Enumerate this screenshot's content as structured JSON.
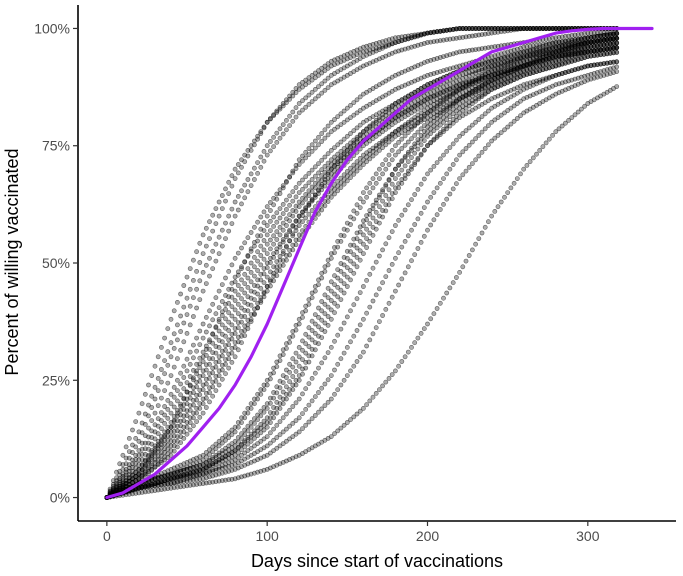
{
  "chart_data": {
    "type": "scatter",
    "title": "",
    "xlabel": "Days since start of vaccinations",
    "ylabel": "Percent of willing vaccinated",
    "xlim": [
      -18,
      355
    ],
    "ylim": [
      -5,
      105
    ],
    "x_ticks": [
      0,
      100,
      200,
      300
    ],
    "x_tick_labels": [
      "0",
      "100",
      "200",
      "300"
    ],
    "y_ticks": [
      0,
      25,
      50,
      75,
      100
    ],
    "y_tick_labels": [
      "0%",
      "25%",
      "50%",
      "75%",
      "100%"
    ],
    "grid": false,
    "legend": "none",
    "colors": {
      "points": "#000000",
      "fit": "#a020f0",
      "axis": "#000000"
    },
    "series": [
      {
        "x": [
          0,
          20,
          40,
          60,
          80,
          100,
          120,
          140,
          160,
          180,
          200,
          220,
          240,
          260,
          280,
          300,
          320
        ],
        "y": [
          0,
          5,
          14,
          26,
          38,
          50,
          60,
          68,
          75,
          80,
          84,
          87,
          90,
          92,
          94,
          96,
          97
        ]
      },
      {
        "x": [
          0,
          20,
          40,
          60,
          80,
          100,
          120,
          140,
          160,
          180,
          200,
          220,
          240,
          260,
          280,
          300,
          320
        ],
        "y": [
          0,
          6,
          16,
          29,
          42,
          54,
          63,
          71,
          77,
          82,
          86,
          89,
          92,
          94,
          96,
          97,
          98
        ]
      },
      {
        "x": [
          0,
          20,
          40,
          60,
          80,
          100,
          120,
          140,
          160,
          180,
          200,
          220,
          240,
          260,
          280,
          300,
          320
        ],
        "y": [
          0,
          3,
          10,
          20,
          32,
          44,
          55,
          64,
          71,
          77,
          81,
          85,
          88,
          91,
          93,
          95,
          96
        ]
      },
      {
        "x": [
          0,
          20,
          40,
          60,
          80,
          100,
          120,
          140,
          160,
          180,
          200,
          220,
          240,
          260,
          280,
          300,
          320
        ],
        "y": [
          0,
          8,
          20,
          34,
          47,
          58,
          67,
          74,
          80,
          84,
          88,
          91,
          93,
          95,
          97,
          98,
          99
        ]
      },
      {
        "x": [
          0,
          20,
          40,
          60,
          80,
          100,
          120,
          140,
          160,
          180,
          200,
          220,
          240,
          260,
          280,
          300,
          320
        ],
        "y": [
          0,
          4,
          12,
          23,
          35,
          47,
          58,
          66,
          73,
          78,
          82,
          86,
          89,
          92,
          94,
          95,
          96
        ]
      },
      {
        "x": [
          0,
          20,
          40,
          60,
          80,
          100,
          120,
          140,
          160,
          180,
          200,
          220,
          240,
          260,
          280,
          300,
          320
        ],
        "y": [
          0,
          7,
          18,
          31,
          44,
          56,
          65,
          72,
          78,
          83,
          87,
          90,
          92,
          94,
          95,
          96,
          97
        ]
      },
      {
        "x": [
          0,
          20,
          40,
          60,
          80,
          100,
          120,
          140,
          160,
          180,
          200,
          220,
          240,
          260,
          280,
          300,
          320
        ],
        "y": [
          0,
          5,
          13,
          24,
          36,
          49,
          60,
          69,
          76,
          81,
          85,
          88,
          91,
          93,
          95,
          97,
          98
        ]
      },
      {
        "x": [
          0,
          20,
          40,
          60,
          80,
          100,
          120,
          140,
          160,
          180,
          200,
          220,
          240,
          260,
          280,
          300,
          320
        ],
        "y": [
          0,
          9,
          22,
          37,
          51,
          62,
          71,
          78,
          83,
          87,
          90,
          92,
          94,
          96,
          97,
          98,
          99
        ]
      },
      {
        "x": [
          0,
          20,
          40,
          60,
          80,
          100,
          120,
          140,
          160,
          180,
          200,
          220,
          240,
          260,
          280,
          300,
          320
        ],
        "y": [
          0,
          6,
          15,
          27,
          40,
          52,
          62,
          70,
          76,
          81,
          85,
          88,
          90,
          92,
          94,
          95,
          96
        ]
      },
      {
        "x": [
          0,
          20,
          40,
          60,
          80,
          100,
          120,
          140,
          160,
          180,
          200,
          220,
          240,
          260,
          280,
          300,
          320
        ],
        "y": [
          0,
          4,
          11,
          21,
          33,
          45,
          56,
          65,
          72,
          78,
          83,
          87,
          90,
          93,
          95,
          97,
          98
        ]
      },
      {
        "x": [
          0,
          20,
          40,
          60,
          80,
          100,
          120,
          140,
          160,
          180,
          200,
          220,
          240,
          260,
          280,
          300,
          320
        ],
        "y": [
          0,
          3,
          5,
          7,
          12,
          20,
          32,
          46,
          59,
          70,
          78,
          84,
          88,
          91,
          93,
          95,
          96
        ]
      },
      {
        "x": [
          0,
          20,
          40,
          60,
          80,
          100,
          120,
          140,
          160,
          180,
          200,
          220,
          240,
          260,
          280,
          300,
          320
        ],
        "y": [
          0,
          2,
          4,
          6,
          10,
          17,
          28,
          42,
          56,
          68,
          77,
          83,
          87,
          90,
          92,
          94,
          95
        ]
      },
      {
        "x": [
          0,
          20,
          40,
          60,
          80,
          100,
          120,
          140,
          160,
          180,
          200,
          220,
          240,
          260,
          280,
          300,
          320
        ],
        "y": [
          0,
          3,
          5,
          8,
          14,
          24,
          37,
          51,
          63,
          73,
          80,
          85,
          89,
          92,
          94,
          96,
          97
        ]
      },
      {
        "x": [
          0,
          20,
          40,
          60,
          80,
          100,
          120,
          140,
          160,
          180,
          200,
          220,
          240,
          260,
          280,
          300,
          320
        ],
        "y": [
          0,
          2,
          4,
          6,
          9,
          15,
          25,
          38,
          52,
          65,
          75,
          82,
          87,
          90,
          92,
          94,
          95
        ]
      },
      {
        "x": [
          0,
          20,
          40,
          60,
          80,
          100,
          120,
          140,
          160,
          180,
          200,
          220,
          240,
          260,
          280,
          300,
          320
        ],
        "y": [
          0,
          3,
          5,
          7,
          11,
          19,
          30,
          44,
          58,
          70,
          79,
          85,
          89,
          92,
          95,
          97,
          98
        ]
      },
      {
        "x": [
          0,
          20,
          40,
          60,
          80,
          100,
          120,
          140,
          160,
          180,
          200,
          220,
          240,
          260,
          280,
          300,
          320
        ],
        "y": [
          0,
          2,
          4,
          6,
          10,
          16,
          26,
          40,
          54,
          66,
          75,
          81,
          85,
          88,
          90,
          92,
          93
        ]
      },
      {
        "x": [
          0,
          20,
          40,
          60,
          80,
          100,
          120,
          140,
          160,
          180,
          200,
          220,
          240,
          260,
          280,
          300,
          320
        ],
        "y": [
          0,
          2,
          4,
          5,
          8,
          13,
          21,
          32,
          45,
          58,
          69,
          77,
          83,
          87,
          90,
          92,
          93
        ]
      },
      {
        "x": [
          0,
          20,
          40,
          60,
          80,
          100,
          120,
          140,
          160,
          180,
          200,
          220,
          240,
          260,
          280,
          300,
          320
        ],
        "y": [
          0,
          3,
          6,
          9,
          15,
          25,
          38,
          52,
          65,
          75,
          82,
          87,
          91,
          94,
          96,
          98,
          99
        ]
      },
      {
        "x": [
          0,
          20,
          40,
          60,
          80,
          100,
          120,
          140,
          160,
          180,
          200,
          220,
          240,
          260,
          280,
          300,
          320
        ],
        "y": [
          0,
          2,
          3,
          4,
          6,
          9,
          14,
          21,
          31,
          44,
          57,
          68,
          76,
          82,
          86,
          89,
          91
        ]
      },
      {
        "x": [
          0,
          20,
          40,
          60,
          80,
          100,
          120,
          140,
          160,
          180,
          200,
          220,
          240,
          260,
          280,
          300,
          320
        ],
        "y": [
          0,
          2,
          3,
          5,
          7,
          11,
          17,
          26,
          38,
          51,
          63,
          73,
          80,
          85,
          88,
          90,
          92
        ]
      },
      {
        "x": [
          0,
          20,
          40,
          60,
          80,
          100,
          120,
          140,
          160,
          180,
          200,
          220,
          240,
          260,
          280,
          300,
          320
        ],
        "y": [
          0,
          18,
          38,
          56,
          70,
          80,
          87,
          92,
          95,
          97,
          99,
          100,
          100,
          100,
          100,
          100,
          100
        ]
      },
      {
        "x": [
          0,
          20,
          40,
          60,
          80,
          100,
          120,
          140,
          160,
          180,
          200,
          220,
          240,
          260,
          280,
          300,
          320
        ],
        "y": [
          0,
          12,
          30,
          48,
          63,
          75,
          84,
          90,
          94,
          97,
          99,
          100,
          100,
          100,
          100,
          100,
          100
        ]
      },
      {
        "x": [
          0,
          20,
          40,
          60,
          80,
          100,
          120,
          140,
          160,
          180,
          200,
          220,
          240,
          260,
          280,
          300,
          320
        ],
        "y": [
          0,
          14,
          33,
          52,
          68,
          80,
          88,
          93,
          96,
          98,
          99,
          100,
          100,
          100,
          100,
          100,
          100
        ]
      },
      {
        "x": [
          0,
          20,
          40,
          60,
          80,
          100,
          120,
          140,
          160,
          180,
          200,
          220,
          240,
          260,
          280,
          300,
          320
        ],
        "y": [
          0,
          10,
          26,
          44,
          60,
          73,
          82,
          88,
          92,
          95,
          97,
          98,
          99,
          100,
          100,
          100,
          100
        ]
      },
      {
        "x": [
          0,
          20,
          40,
          60,
          80,
          100,
          120,
          140,
          160,
          180,
          200,
          220,
          240,
          260,
          280,
          300,
          320
        ],
        "y": [
          0,
          1,
          2,
          3,
          4,
          6,
          9,
          13,
          19,
          27,
          37,
          48,
          60,
          70,
          78,
          84,
          88
        ]
      },
      {
        "x": [
          0,
          20,
          40,
          60,
          80,
          100,
          120,
          140,
          160,
          180,
          200,
          220,
          240,
          260,
          280,
          300,
          320
        ],
        "y": [
          0,
          5,
          15,
          30,
          46,
          60,
          72,
          80,
          86,
          90,
          93,
          95,
          96,
          97,
          98,
          99,
          99
        ]
      },
      {
        "x": [
          0,
          20,
          40,
          60,
          80,
          100,
          120,
          140,
          160,
          180,
          200,
          220,
          240,
          260,
          280,
          300,
          320
        ],
        "y": [
          0,
          4,
          9,
          18,
          30,
          45,
          59,
          70,
          78,
          84,
          88,
          91,
          93,
          95,
          96,
          97,
          98
        ]
      }
    ],
    "fit_line": {
      "x": [
        0,
        10,
        20,
        30,
        40,
        50,
        60,
        70,
        80,
        90,
        100,
        110,
        120,
        130,
        140,
        150,
        160,
        170,
        180,
        190,
        200,
        210,
        220,
        230,
        240,
        250,
        260,
        270,
        280,
        290,
        300,
        310,
        320,
        330,
        340
      ],
      "y": [
        0,
        1,
        3,
        5,
        8,
        11,
        15,
        19,
        24,
        30,
        37,
        45,
        53,
        61,
        67,
        72,
        76,
        79,
        82,
        85,
        87,
        89,
        91,
        93,
        95,
        96,
        97,
        98,
        99,
        99.5,
        99.8,
        100,
        100,
        100,
        100
      ]
    }
  }
}
